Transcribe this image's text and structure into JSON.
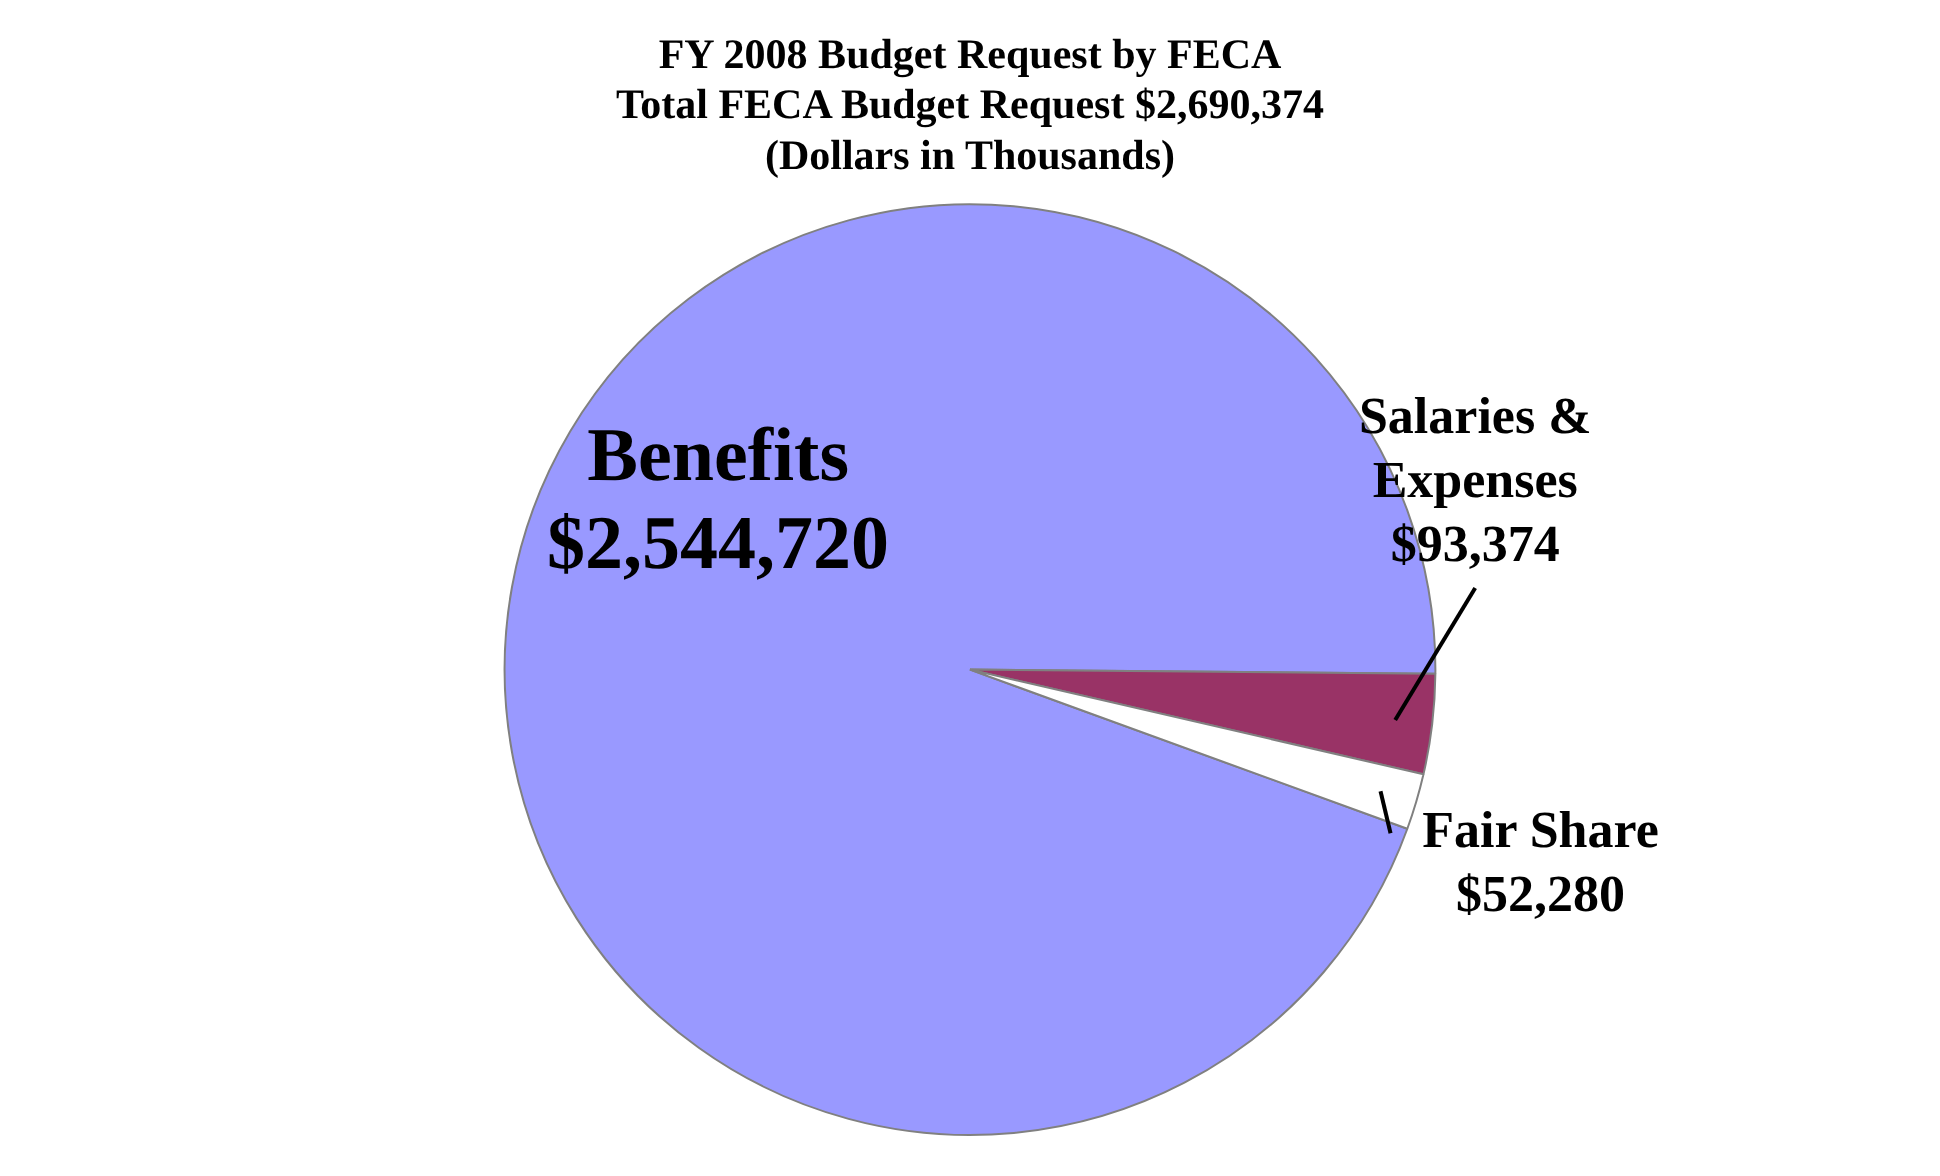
{
  "chart_data": {
    "type": "pie",
    "title": "FY 2008 Budget Request by FECA\nTotal FECA Budget Request $2,690,374\n(Dollars in Thousands)",
    "categories": [
      "Benefits",
      "Salaries & Expenses",
      "Fair Share"
    ],
    "values": [
      2544720,
      93374,
      52280
    ],
    "colors": [
      "#9999ff",
      "#993366",
      "#ffffff"
    ],
    "value_labels": [
      "$2,544,720",
      "$93,374",
      "$52,280"
    ],
    "legend": false
  }
}
